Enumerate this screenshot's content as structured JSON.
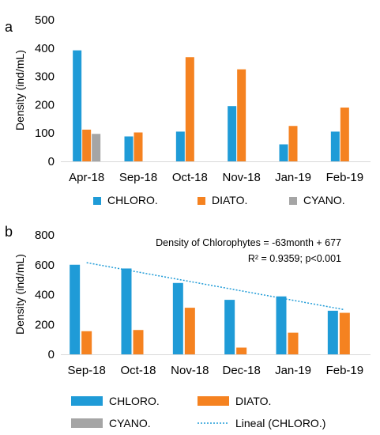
{
  "chart_data": [
    {
      "panel_label": "a",
      "type": "bar",
      "ylabel": "Density (ind/mL)",
      "ylim": [
        0,
        500
      ],
      "yticks": [
        0,
        100,
        200,
        300,
        400,
        500
      ],
      "categories": [
        "Apr-18",
        "Sep-18",
        "Oct-18",
        "Nov-18",
        "Jan-19",
        "Feb-19"
      ],
      "series": [
        {
          "name": "CHLORO.",
          "color": "#1f9bd7",
          "values": [
            392,
            88,
            105,
            195,
            60,
            105
          ]
        },
        {
          "name": "DIATO.",
          "color": "#f58220",
          "values": [
            112,
            102,
            368,
            325,
            125,
            190
          ]
        },
        {
          "name": "CYANO.",
          "color": "#a5a5a5",
          "values": [
            97,
            0,
            0,
            0,
            0,
            0
          ]
        }
      ],
      "legend": "bottom",
      "grid": false
    },
    {
      "panel_label": "b",
      "type": "bar",
      "ylabel": "Density (ind/mL)",
      "ylim": [
        0,
        800
      ],
      "yticks": [
        0,
        200,
        400,
        600,
        800
      ],
      "categories": [
        "Sep-18",
        "Oct-18",
        "Nov-18",
        "Dec-18",
        "Jan-19",
        "Feb-19"
      ],
      "series": [
        {
          "name": "CHLORO.",
          "color": "#1f9bd7",
          "values": [
            600,
            575,
            478,
            365,
            388,
            292
          ]
        },
        {
          "name": "DIATO.",
          "color": "#f58220",
          "values": [
            155,
            163,
            312,
            45,
            145,
            278
          ]
        },
        {
          "name": "CYANO.",
          "color": "#a5a5a5",
          "values": [
            0,
            0,
            0,
            0,
            0,
            0
          ]
        }
      ],
      "trendline": {
        "name": "Lineal (CHLORO.)",
        "color": "#1f9bd7",
        "slope": -63,
        "intercept": 677
      },
      "annotation_lines": [
        "Density of Chlorophytes = -63month + 677",
        "R² = 0.9359; p<0.001"
      ],
      "legend": "bottom",
      "grid": false
    }
  ]
}
